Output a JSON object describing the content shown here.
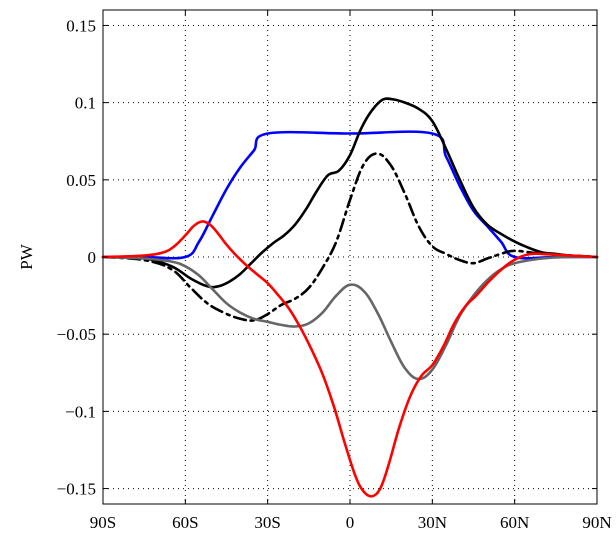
{
  "chart_data": {
    "type": "line",
    "xlabel": "",
    "ylabel": "PW",
    "xlim": [
      -90,
      90
    ],
    "ylim": [
      -0.16,
      0.16
    ],
    "xticks": [
      {
        "value": -90,
        "label": "90S"
      },
      {
        "value": -60,
        "label": "60S"
      },
      {
        "value": -30,
        "label": "30S"
      },
      {
        "value": 0,
        "label": "0"
      },
      {
        "value": 30,
        "label": "30N"
      },
      {
        "value": 60,
        "label": "60N"
      },
      {
        "value": 90,
        "label": "90N"
      }
    ],
    "yticks": [
      {
        "value": 0.15,
        "label": "0.15"
      },
      {
        "value": 0.1,
        "label": "0.1"
      },
      {
        "value": 0.05,
        "label": "0.05"
      },
      {
        "value": 0,
        "label": "0"
      },
      {
        "value": -0.05,
        "label": "−0.05"
      },
      {
        "value": -0.1,
        "label": "−0.1"
      },
      {
        "value": -0.15,
        "label": "−0.15"
      }
    ],
    "grid": true,
    "series": [
      {
        "color": "#0000ff",
        "dash": "solid",
        "x": [
          -90,
          -75,
          -60,
          -55,
          -50,
          -45,
          -40,
          -35,
          -30,
          0,
          30,
          35,
          40,
          45,
          50,
          55,
          60,
          75,
          90
        ],
        "y": [
          0,
          0,
          0,
          0.01,
          0.027,
          0.044,
          0.058,
          0.069,
          0.08,
          0.08,
          0.08,
          0.065,
          0.046,
          0.03,
          0.02,
          0.01,
          0,
          0,
          0
        ]
      },
      {
        "color": "#000000",
        "dash": "solid",
        "x": [
          -90,
          -75,
          -65,
          -58,
          -52,
          -48,
          -44,
          -40,
          -36,
          -32,
          -28,
          -24,
          -20,
          -16,
          -12,
          -8,
          -4,
          0,
          4,
          8,
          12,
          16,
          20,
          25,
          30,
          35,
          40,
          45,
          50,
          55,
          60,
          65,
          70,
          75,
          80,
          90
        ],
        "y": [
          0,
          -0.001,
          -0.006,
          -0.014,
          -0.019,
          -0.019,
          -0.016,
          -0.011,
          -0.004,
          0.003,
          0.009,
          0.014,
          0.021,
          0.031,
          0.043,
          0.053,
          0.056,
          0.066,
          0.083,
          0.095,
          0.102,
          0.102,
          0.1,
          0.096,
          0.088,
          0.07,
          0.05,
          0.032,
          0.021,
          0.015,
          0.01,
          0.006,
          0.003,
          0.002,
          0.001,
          0
        ]
      },
      {
        "color": "#000000",
        "dash": "dashdot",
        "x": [
          -90,
          -75,
          -65,
          -58,
          -52,
          -46,
          -40,
          -35,
          -30,
          -25,
          -20,
          -15,
          -10,
          -5,
          0,
          5,
          10,
          15,
          20,
          25,
          30,
          35,
          40,
          45,
          50,
          55,
          60,
          70,
          80,
          90
        ],
        "y": [
          0,
          -0.002,
          -0.008,
          -0.02,
          -0.03,
          -0.036,
          -0.04,
          -0.041,
          -0.037,
          -0.031,
          -0.027,
          -0.02,
          -0.007,
          0.01,
          0.037,
          0.06,
          0.067,
          0.059,
          0.041,
          0.02,
          0.007,
          0.002,
          -0.002,
          -0.004,
          -0.001,
          0.002,
          0.004,
          0.002,
          0.001,
          0
        ]
      },
      {
        "color": "#666666",
        "dash": "solid",
        "x": [
          -90,
          -75,
          -65,
          -60,
          -55,
          -50,
          -45,
          -40,
          -35,
          -30,
          -25,
          -20,
          -15,
          -10,
          -5,
          0,
          5,
          10,
          15,
          20,
          25,
          30,
          35,
          40,
          45,
          50,
          55,
          60,
          70,
          80,
          90
        ],
        "y": [
          0,
          -0.001,
          -0.003,
          -0.006,
          -0.012,
          -0.021,
          -0.03,
          -0.036,
          -0.04,
          -0.042,
          -0.044,
          -0.045,
          -0.043,
          -0.036,
          -0.025,
          -0.018,
          -0.022,
          -0.036,
          -0.055,
          -0.072,
          -0.079,
          -0.073,
          -0.057,
          -0.038,
          -0.025,
          -0.015,
          -0.008,
          -0.004,
          -0.001,
          0,
          0
        ]
      },
      {
        "color": "#ff0000",
        "dash": "solid",
        "x": [
          -90,
          -75,
          -68,
          -64,
          -60,
          -57,
          -54,
          -51,
          -48,
          -45,
          -42,
          -38,
          -34,
          -30,
          -26,
          -22,
          -18,
          -14,
          -10,
          -6,
          -2,
          2,
          5,
          8,
          11,
          14,
          18,
          22,
          26,
          30,
          34,
          38,
          42,
          46,
          50,
          54,
          58,
          62,
          66,
          70,
          80,
          90
        ],
        "y": [
          0,
          0.001,
          0.003,
          0.007,
          0.014,
          0.02,
          0.023,
          0.021,
          0.015,
          0.008,
          0.002,
          -0.005,
          -0.011,
          -0.017,
          -0.025,
          -0.034,
          -0.046,
          -0.06,
          -0.076,
          -0.096,
          -0.12,
          -0.142,
          -0.152,
          -0.155,
          -0.15,
          -0.135,
          -0.11,
          -0.09,
          -0.077,
          -0.07,
          -0.058,
          -0.043,
          -0.032,
          -0.025,
          -0.017,
          -0.01,
          -0.004,
          0,
          0.002,
          0.002,
          0.001,
          0
        ]
      }
    ]
  }
}
